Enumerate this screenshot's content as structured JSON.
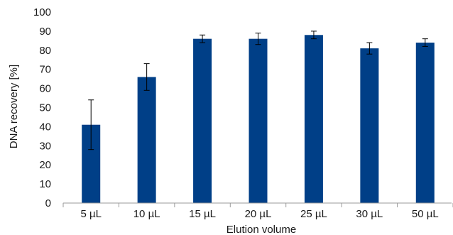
{
  "chart_data": {
    "type": "bar",
    "title": "",
    "xlabel": "Elution volume",
    "ylabel": "DNA recovery [%]",
    "ylim": [
      0,
      100
    ],
    "yticks": [
      0,
      10,
      20,
      30,
      40,
      50,
      60,
      70,
      80,
      90,
      100
    ],
    "grid": false,
    "categories": [
      "5 µL",
      "10 µL",
      "15 µL",
      "20 µL",
      "25 µL",
      "30 µL",
      "50 µL"
    ],
    "series": [
      {
        "values": [
          41,
          66,
          86,
          86,
          88,
          81,
          84
        ],
        "error": [
          13,
          7,
          2,
          3,
          2,
          3,
          2
        ],
        "color": "#003F87"
      }
    ]
  }
}
